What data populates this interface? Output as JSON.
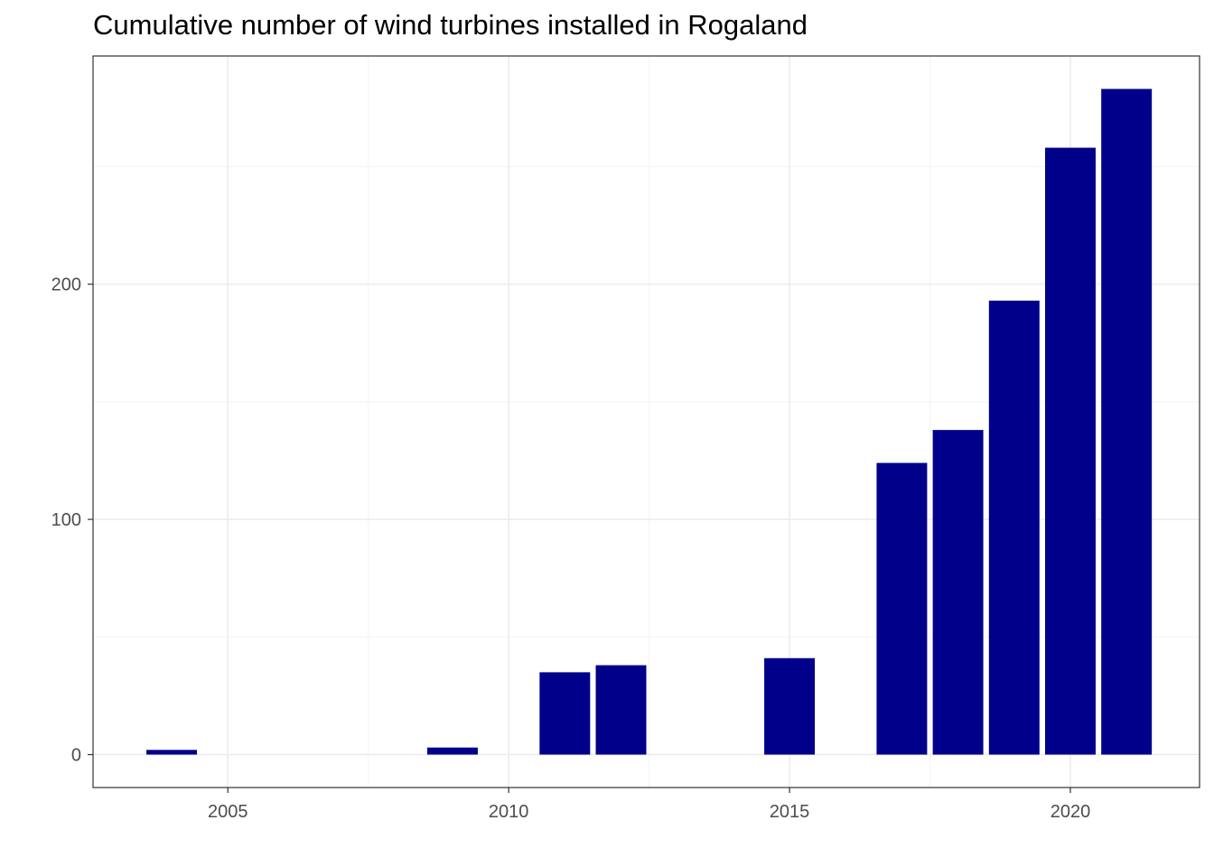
{
  "chart_data": {
    "type": "bar",
    "title": "Cumulative number of wind turbines installed in Rogaland",
    "xlabel": "",
    "ylabel": "",
    "x": [
      2004,
      2009,
      2011,
      2012,
      2015,
      2017,
      2018,
      2019,
      2020,
      2021
    ],
    "values": [
      2,
      3,
      35,
      38,
      41,
      124,
      138,
      193,
      258,
      283
    ],
    "xlim": [
      2002.6,
      2022.3
    ],
    "ylim": [
      -14,
      297
    ],
    "x_ticks": [
      2005,
      2010,
      2015,
      2020
    ],
    "y_ticks": [
      0,
      100,
      200
    ],
    "y_minor": [
      50,
      150,
      250
    ],
    "x_minor": [
      2007.5,
      2012.5,
      2017.5
    ],
    "bar_color": "#00008B",
    "grid": true,
    "legend": "none"
  }
}
